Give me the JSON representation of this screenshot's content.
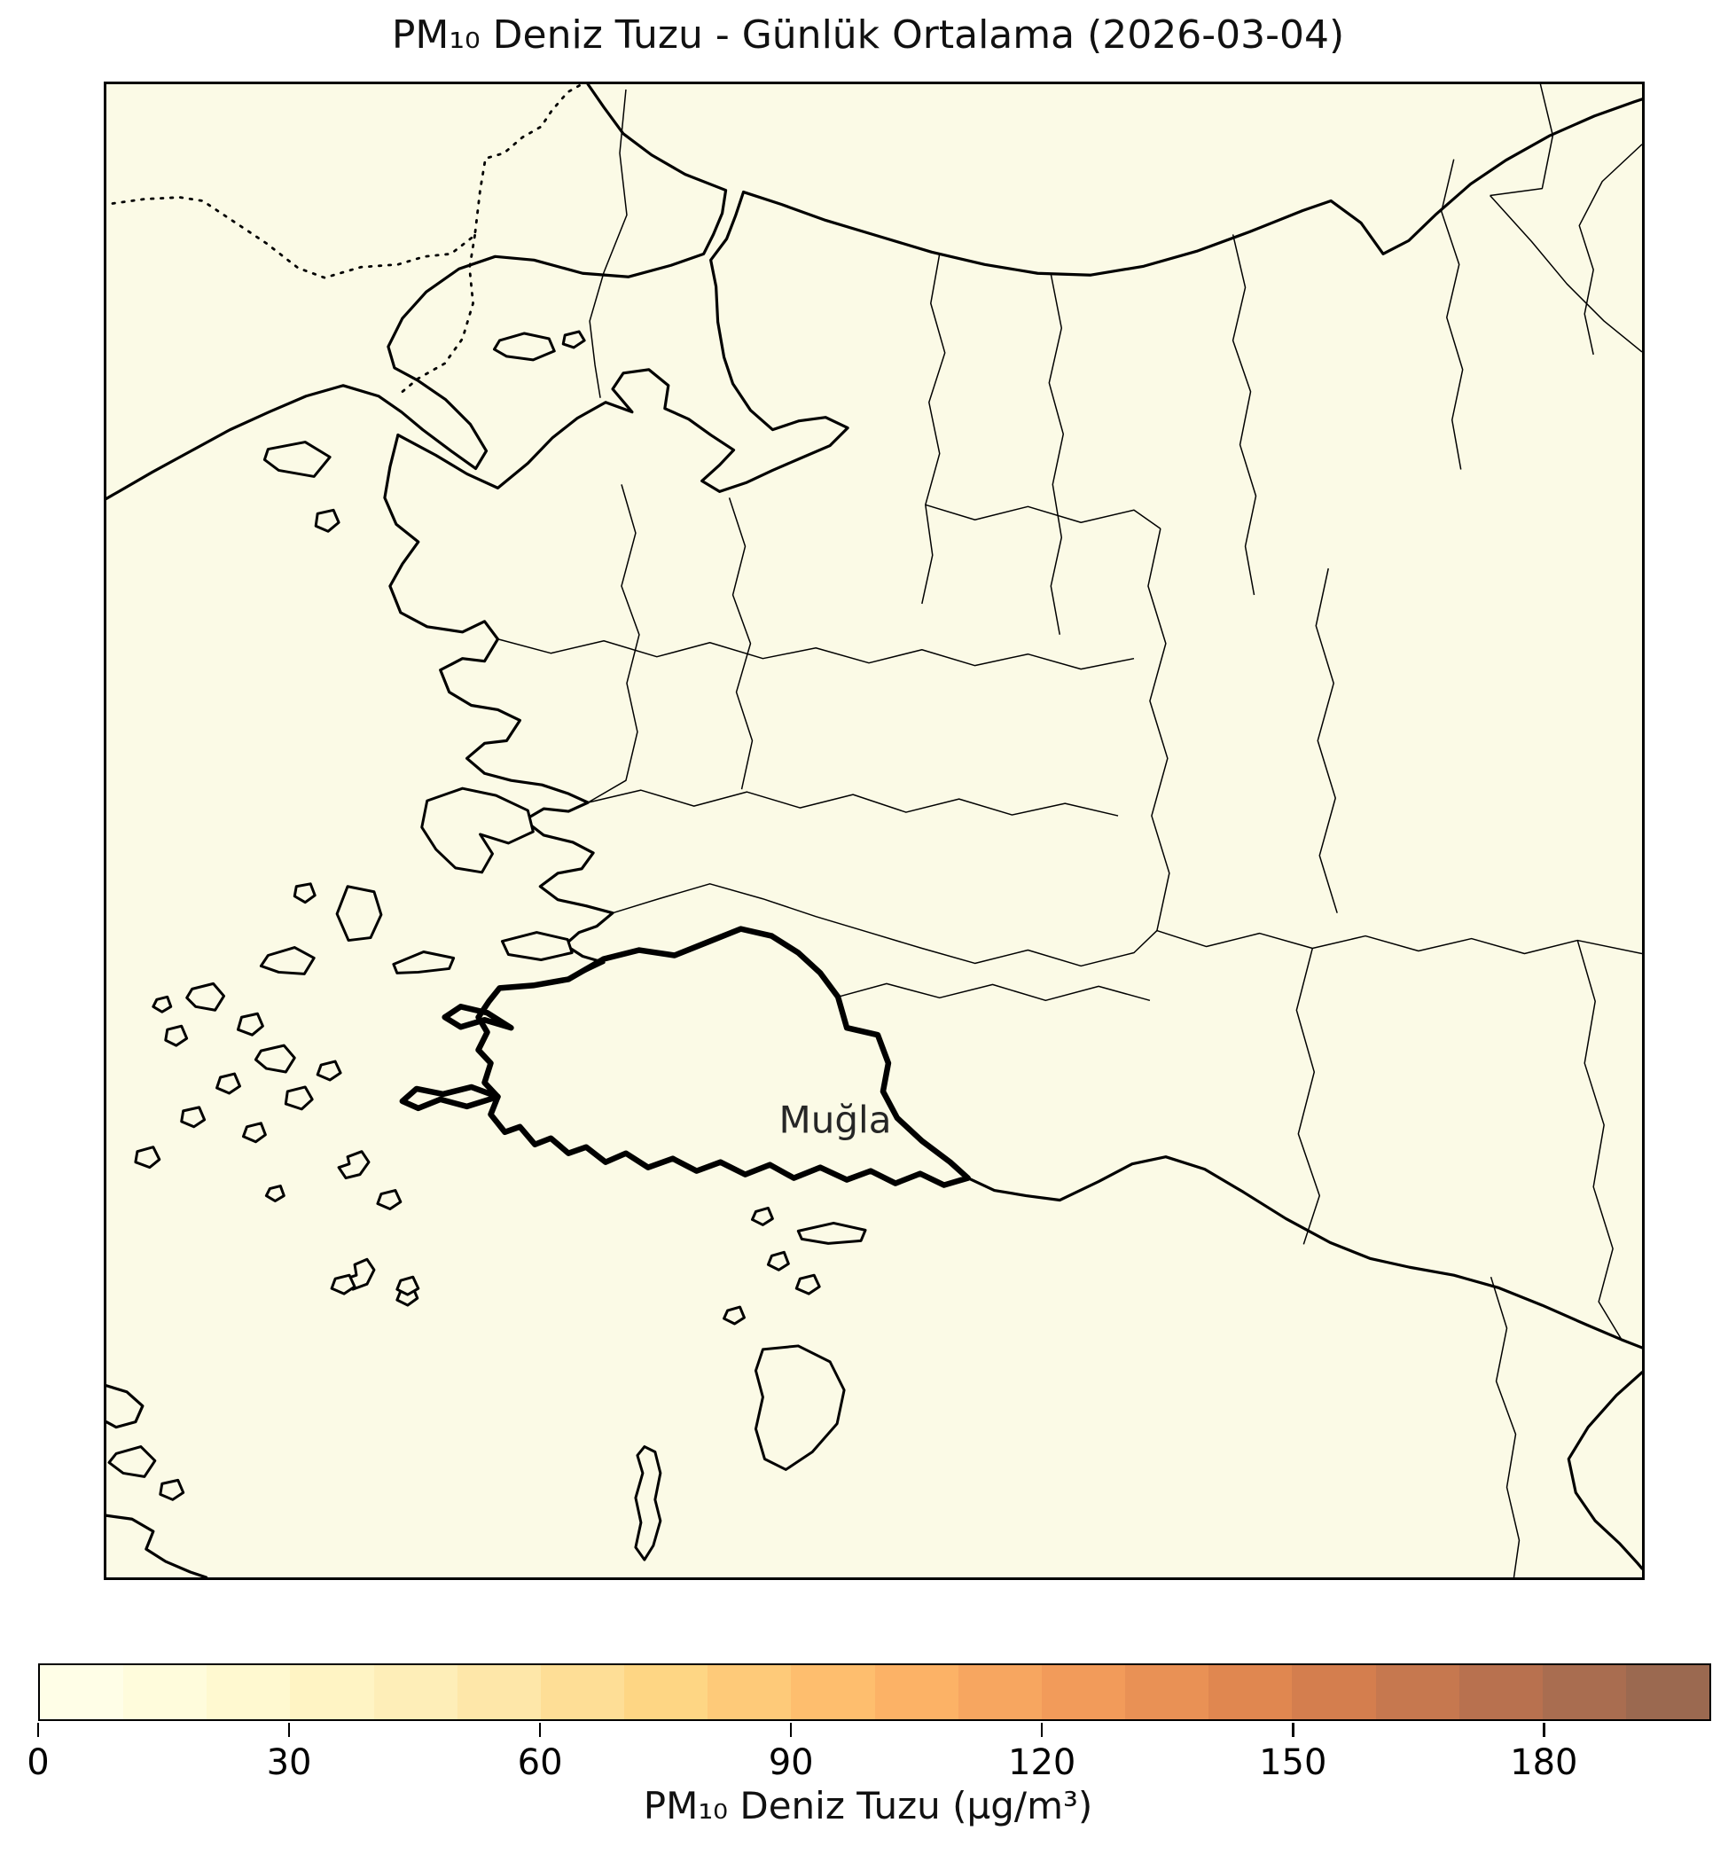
{
  "title": "PM₁₀ Deniz Tuzu - Günlük Ortalama (2026-03-04)",
  "map": {
    "region_label": "Muğla",
    "background_color": "#fbfae6",
    "line_color": "#000000"
  },
  "colorbar": {
    "label": "PM₁₀ Deniz Tuzu (µg/m³)",
    "min": 0,
    "max": 200,
    "ticks": [
      0,
      30,
      60,
      90,
      120,
      150,
      180
    ],
    "segment_colors": [
      "#fffee7",
      "#fffcdc",
      "#fff9d0",
      "#fff4c4",
      "#feeeb8",
      "#fee7a9",
      "#fede96",
      "#fed684",
      "#feca79",
      "#febe6e",
      "#fcb266",
      "#f7a660",
      "#f29b5a",
      "#e99155",
      "#e08750",
      "#d47e4e",
      "#c6784f",
      "#b8714f",
      "#a96d50",
      "#9b6950"
    ]
  }
}
